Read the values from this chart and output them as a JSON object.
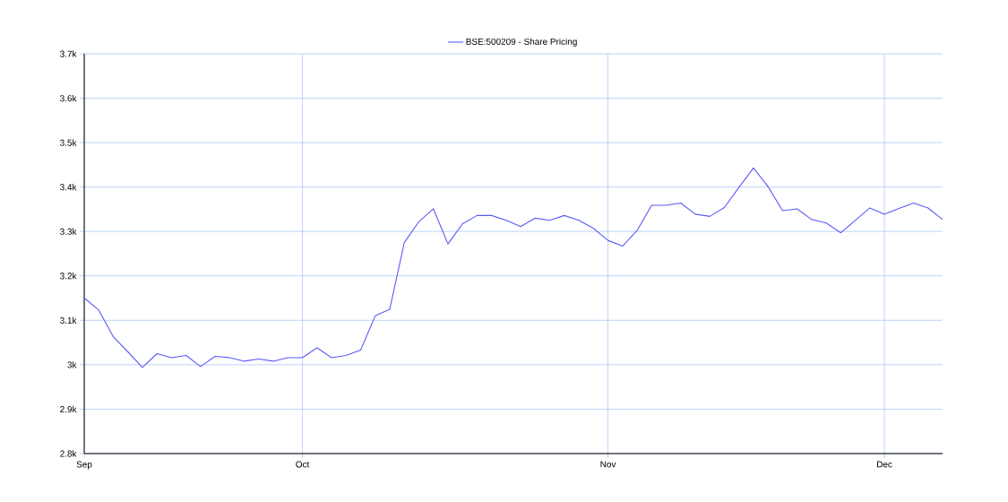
{
  "chart_data": {
    "type": "line",
    "categories": [
      "Sep",
      null,
      null,
      null,
      null,
      null,
      null,
      null,
      null,
      null,
      null,
      null,
      null,
      null,
      null,
      "Oct",
      null,
      null,
      null,
      null,
      null,
      null,
      null,
      null,
      null,
      null,
      null,
      null,
      null,
      null,
      null,
      null,
      null,
      null,
      null,
      null,
      "Nov",
      null,
      null,
      null,
      null,
      null,
      null,
      null,
      null,
      null,
      null,
      null,
      null,
      null,
      null,
      null,
      null,
      null,
      null,
      "Dec",
      null,
      null,
      null,
      null
    ],
    "series": [
      {
        "name": "BSE:500209 - Share Pricing",
        "color": "#5b5bf5",
        "values": [
          3150,
          3123,
          3063,
          3029,
          2994,
          3025,
          3016,
          3021,
          2996,
          3019,
          3016,
          3008,
          3013,
          3008,
          3016,
          3016,
          3038,
          3016,
          3021,
          3033,
          3110,
          3125,
          3275,
          3322,
          3351,
          3272,
          3317,
          3336,
          3336,
          3325,
          3311,
          3330,
          3325,
          3336,
          3325,
          3307,
          3280,
          3267,
          3302,
          3359,
          3359,
          3364,
          3339,
          3334,
          3354,
          3399,
          3443,
          3401,
          3347,
          3351,
          3327,
          3319,
          3297,
          3325,
          3353,
          3339,
          3352,
          3364,
          3353,
          3327
        ]
      }
    ],
    "ylim": [
      2800,
      3700
    ],
    "yticks": [
      {
        "value": 2800,
        "label": "2.8k"
      },
      {
        "value": 2900,
        "label": "2.9k"
      },
      {
        "value": 3000,
        "label": "3k"
      },
      {
        "value": 3100,
        "label": "3.1k"
      },
      {
        "value": 3200,
        "label": "3.2k"
      },
      {
        "value": 3300,
        "label": "3.3k"
      },
      {
        "value": 3400,
        "label": "3.4k"
      },
      {
        "value": 3500,
        "label": "3.5k"
      },
      {
        "value": 3600,
        "label": "3.6k"
      },
      {
        "value": 3700,
        "label": "3.7k"
      }
    ],
    "grid": true,
    "legend": "top",
    "marker": "none",
    "line_style": "solid"
  }
}
